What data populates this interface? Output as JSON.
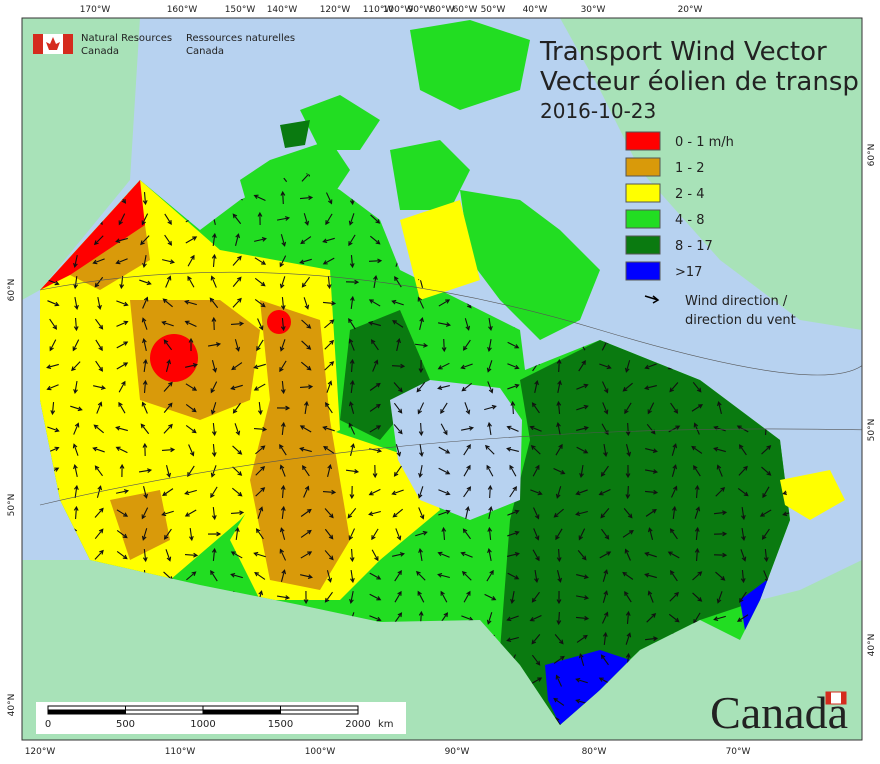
{
  "header": {
    "agency_en": [
      "Natural Resources",
      "Canada"
    ],
    "agency_fr": [
      "Ressources naturelles",
      "Canada"
    ]
  },
  "title": [
    "Transport Wind Vector",
    "Vecteur éolien de transp"
  ],
  "date": "2016-10-23",
  "legend": {
    "items": [
      {
        "label": "0 - 1 m/h",
        "color": "#ff0000"
      },
      {
        "label": "1 - 2",
        "color": "#d99a0a"
      },
      {
        "label": "2 - 4",
        "color": "#ffff00"
      },
      {
        "label": "4 - 8",
        "color": "#22dd22"
      },
      {
        "label": "8 - 17",
        "color": "#0a7a10"
      },
      {
        "label": ">17",
        "color": "#0000ff"
      }
    ],
    "arrow_label": [
      "Wind direction /",
      "direction du vent"
    ]
  },
  "top_labels": [
    "170°W",
    "160°W",
    "150°W",
    "140°W",
    "120°W",
    "110°W",
    "100°W",
    "90°W",
    "80°W",
    "60°W",
    "50°W",
    "40°W",
    "30°W",
    "20°W"
  ],
  "bottom_labels": [
    "120°W",
    "110°W",
    "100°W",
    "90°W",
    "80°W",
    "70°W"
  ],
  "left_labels": [
    "60°N",
    "50°N",
    "40°N"
  ],
  "right_labels": [
    "60°N",
    "50°N",
    "40°N"
  ],
  "scale_bar": {
    "labels": [
      0,
      500,
      1000,
      1500,
      2000
    ],
    "unit": "km"
  },
  "wordmark": "Canada"
}
